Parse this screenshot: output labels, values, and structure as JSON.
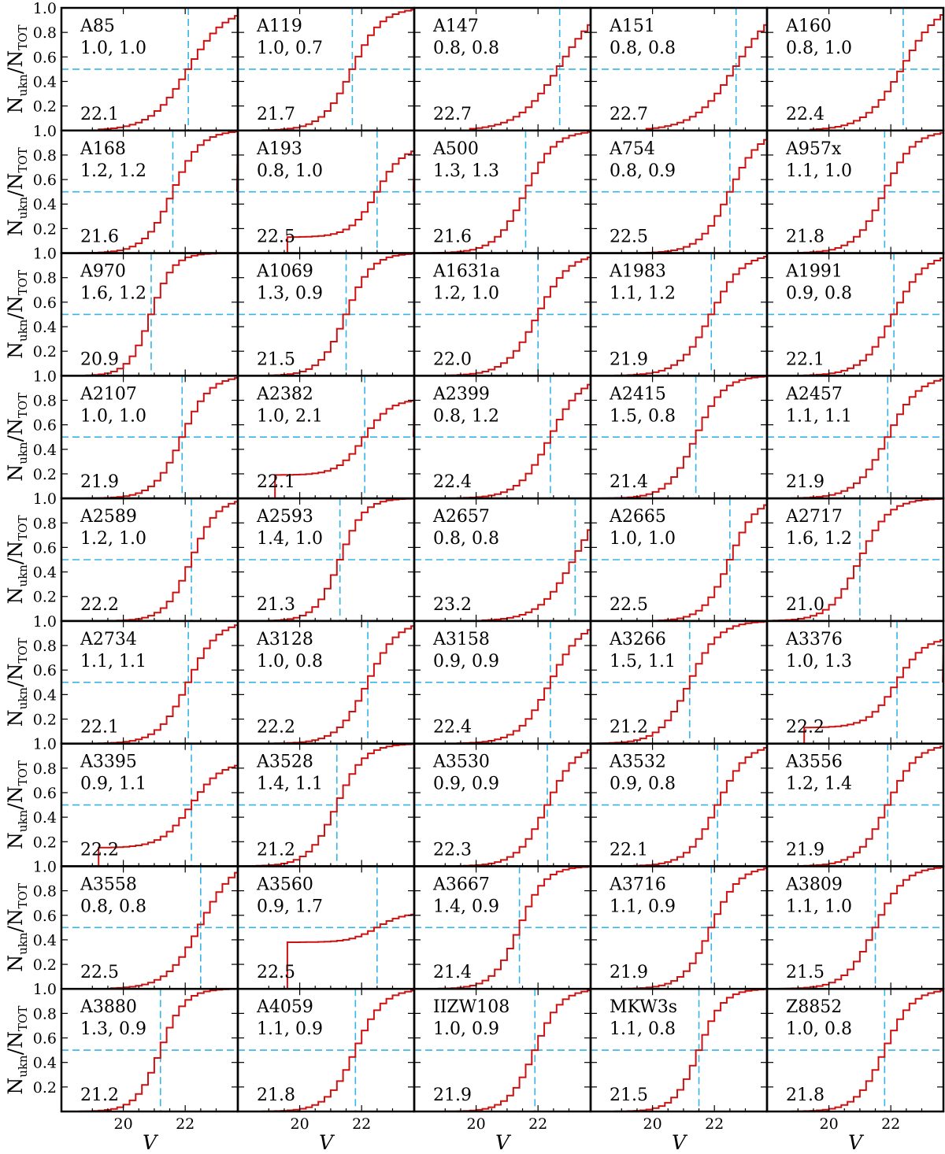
{
  "chart_data": {
    "type": "line",
    "layout": {
      "rows": 9,
      "cols": 5
    },
    "xlabel": "V",
    "ylabel": {
      "base": "N",
      "num_sub": "ukn",
      "sep": "/",
      "den_base": "N",
      "den_sub": "TOT"
    },
    "xlim": [
      18.0,
      23.7
    ],
    "ylim": [
      0.0,
      1.0
    ],
    "xticks": [
      20,
      22
    ],
    "yticks": [
      0.2,
      0.4,
      0.6,
      0.8,
      1.0
    ],
    "ytick_labels": [
      "0.2",
      "0.4",
      "0.6",
      "0.8",
      "1.0"
    ],
    "xtick_labels": [
      "20",
      "22"
    ],
    "threshold": 0.5,
    "colors": {
      "curve": "#cc1111",
      "guide": "#35b5e5"
    },
    "panels": [
      {
        "name": "A85",
        "params": "1.0, 1.0",
        "value": "22.1",
        "v50": 22.1,
        "s": 1.0,
        "h": "flat"
      },
      {
        "name": "A119",
        "params": "1.0, 0.7",
        "value": "21.7",
        "v50": 21.7,
        "s": 0.8,
        "h": "flat"
      },
      {
        "name": "A147",
        "params": "0.8, 0.8",
        "value": "22.7",
        "v50": 22.7,
        "s": 1.1,
        "h": "rise"
      },
      {
        "name": "A151",
        "params": "0.8, 0.8",
        "value": "22.7",
        "v50": 22.7,
        "s": 1.1,
        "h": "rise"
      },
      {
        "name": "A160",
        "params": "0.8, 1.0",
        "value": "22.4",
        "v50": 22.4,
        "s": 1.0,
        "h": "rise"
      },
      {
        "name": "A168",
        "params": "1.2, 1.2",
        "value": "21.6",
        "v50": 21.6,
        "s": 0.75,
        "h": "drop"
      },
      {
        "name": "A193",
        "params": "0.8, 1.0",
        "value": "22.5",
        "v50": 22.5,
        "s": 0.7,
        "h": "drop",
        "peak": 0.87
      },
      {
        "name": "A500",
        "params": "1.3, 1.3",
        "value": "21.6",
        "v50": 21.6,
        "s": 0.8,
        "h": "flat"
      },
      {
        "name": "A754",
        "params": "0.8, 0.9",
        "value": "22.5",
        "v50": 22.5,
        "s": 0.8,
        "h": "flat"
      },
      {
        "name": "A957x",
        "params": "1.1, 1.0",
        "value": "21.8",
        "v50": 21.8,
        "s": 0.8,
        "h": "flat"
      },
      {
        "name": "A970",
        "params": "1.6, 1.2",
        "value": "20.9",
        "v50": 20.9,
        "s": 0.6,
        "h": "flat"
      },
      {
        "name": "A1069",
        "params": "1.3, 0.9",
        "value": "21.5",
        "v50": 21.5,
        "s": 0.7,
        "h": "flat"
      },
      {
        "name": "A1631a",
        "params": "1.2, 1.0",
        "value": "22.0",
        "v50": 22.0,
        "s": 0.85,
        "h": "flat"
      },
      {
        "name": "A1983",
        "params": "1.1, 1.2",
        "value": "21.9",
        "v50": 21.9,
        "s": 0.85,
        "h": "flat"
      },
      {
        "name": "A1991",
        "params": "0.9, 0.8",
        "value": "22.1",
        "v50": 22.1,
        "s": 0.85,
        "h": "flat"
      },
      {
        "name": "A2107",
        "params": "1.0, 1.0",
        "value": "21.9",
        "v50": 21.9,
        "s": 0.75,
        "h": "flat"
      },
      {
        "name": "A2382",
        "params": "1.0, 2.1",
        "value": "22.1",
        "v50": 22.1,
        "s": 0.7,
        "h": "drop",
        "peak": 0.81
      },
      {
        "name": "A2399",
        "params": "0.8, 1.2",
        "value": "22.4",
        "v50": 22.4,
        "s": 0.85,
        "h": "flat"
      },
      {
        "name": "A2415",
        "params": "1.5, 0.8",
        "value": "21.4",
        "v50": 21.4,
        "s": 0.75,
        "h": "flat"
      },
      {
        "name": "A2457",
        "params": "1.1, 1.1",
        "value": "21.9",
        "v50": 21.9,
        "s": 0.85,
        "h": "flat"
      },
      {
        "name": "A2589",
        "params": "1.2, 1.0",
        "value": "22.2",
        "v50": 22.2,
        "s": 0.7,
        "h": "flat"
      },
      {
        "name": "A2593",
        "params": "1.4, 1.0",
        "value": "21.3",
        "v50": 21.3,
        "s": 0.65,
        "h": "flat"
      },
      {
        "name": "A2657",
        "params": "0.8, 0.8",
        "value": "23.2",
        "v50": 23.2,
        "s": 0.95,
        "h": "rise"
      },
      {
        "name": "A2665",
        "params": "1.0, 1.0",
        "value": "22.5",
        "v50": 22.5,
        "s": 0.7,
        "h": "flat"
      },
      {
        "name": "A2717",
        "params": "1.6, 1.2",
        "value": "21.0",
        "v50": 21.0,
        "s": 0.8,
        "h": "flat"
      },
      {
        "name": "A2734",
        "params": "1.1, 1.1",
        "value": "22.1",
        "v50": 22.1,
        "s": 0.8,
        "h": "flat"
      },
      {
        "name": "A3128",
        "params": "1.0, 0.8",
        "value": "22.2",
        "v50": 22.2,
        "s": 0.8,
        "h": "flat"
      },
      {
        "name": "A3158",
        "params": "0.9, 0.9",
        "value": "22.4",
        "v50": 22.4,
        "s": 0.85,
        "h": "flat"
      },
      {
        "name": "A3266",
        "params": "1.5, 1.1",
        "value": "21.2",
        "v50": 21.2,
        "s": 0.8,
        "h": "flat"
      },
      {
        "name": "A3376",
        "params": "1.0, 1.3",
        "value": "22.2",
        "v50": 22.2,
        "s": 0.75,
        "h": "drop",
        "peak": 0.87
      },
      {
        "name": "A3395",
        "params": "0.9, 1.1",
        "value": "22.2",
        "v50": 22.2,
        "s": 0.8,
        "h": "flat",
        "peak": 0.85
      },
      {
        "name": "A3528",
        "params": "1.4, 1.1",
        "value": "21.2",
        "v50": 21.2,
        "s": 0.75,
        "h": "flat"
      },
      {
        "name": "A3530",
        "params": "0.9, 0.9",
        "value": "22.3",
        "v50": 22.3,
        "s": 0.8,
        "h": "flat"
      },
      {
        "name": "A3532",
        "params": "0.9, 0.8",
        "value": "22.1",
        "v50": 22.1,
        "s": 0.8,
        "h": "flat"
      },
      {
        "name": "A3556",
        "params": "1.2, 1.4",
        "value": "21.9",
        "v50": 21.9,
        "s": 0.8,
        "h": "flat"
      },
      {
        "name": "A3558",
        "params": "0.8, 0.8",
        "value": "22.5",
        "v50": 22.5,
        "s": 0.9,
        "h": "rise"
      },
      {
        "name": "A3560",
        "params": "0.9, 1.7",
        "value": "22.5",
        "v50": 22.5,
        "s": 0.7,
        "h": "flat",
        "peak": 0.62
      },
      {
        "name": "A3667",
        "params": "1.4, 0.9",
        "value": "21.4",
        "v50": 21.4,
        "s": 0.7,
        "h": "flat"
      },
      {
        "name": "A3716",
        "params": "1.1, 0.9",
        "value": "21.9",
        "v50": 21.9,
        "s": 0.75,
        "h": "flat"
      },
      {
        "name": "A3809",
        "params": "1.1, 1.0",
        "value": "21.5",
        "v50": 21.5,
        "s": 0.8,
        "h": "flat"
      },
      {
        "name": "A3880",
        "params": "1.3, 0.9",
        "value": "21.2",
        "v50": 21.2,
        "s": 0.65,
        "h": "flat"
      },
      {
        "name": "A4059",
        "params": "1.1, 0.9",
        "value": "21.8",
        "v50": 21.8,
        "s": 0.75,
        "h": "flat"
      },
      {
        "name": "IIZW108",
        "params": "1.0, 0.9",
        "value": "21.9",
        "v50": 21.9,
        "s": 0.7,
        "h": "flat"
      },
      {
        "name": "MKW3s",
        "params": "1.1, 0.8",
        "value": "21.5",
        "v50": 21.5,
        "s": 0.65,
        "h": "flat"
      },
      {
        "name": "Z8852",
        "params": "1.0, 0.8",
        "value": "21.8",
        "v50": 21.8,
        "s": 0.75,
        "h": "flat"
      }
    ]
  }
}
